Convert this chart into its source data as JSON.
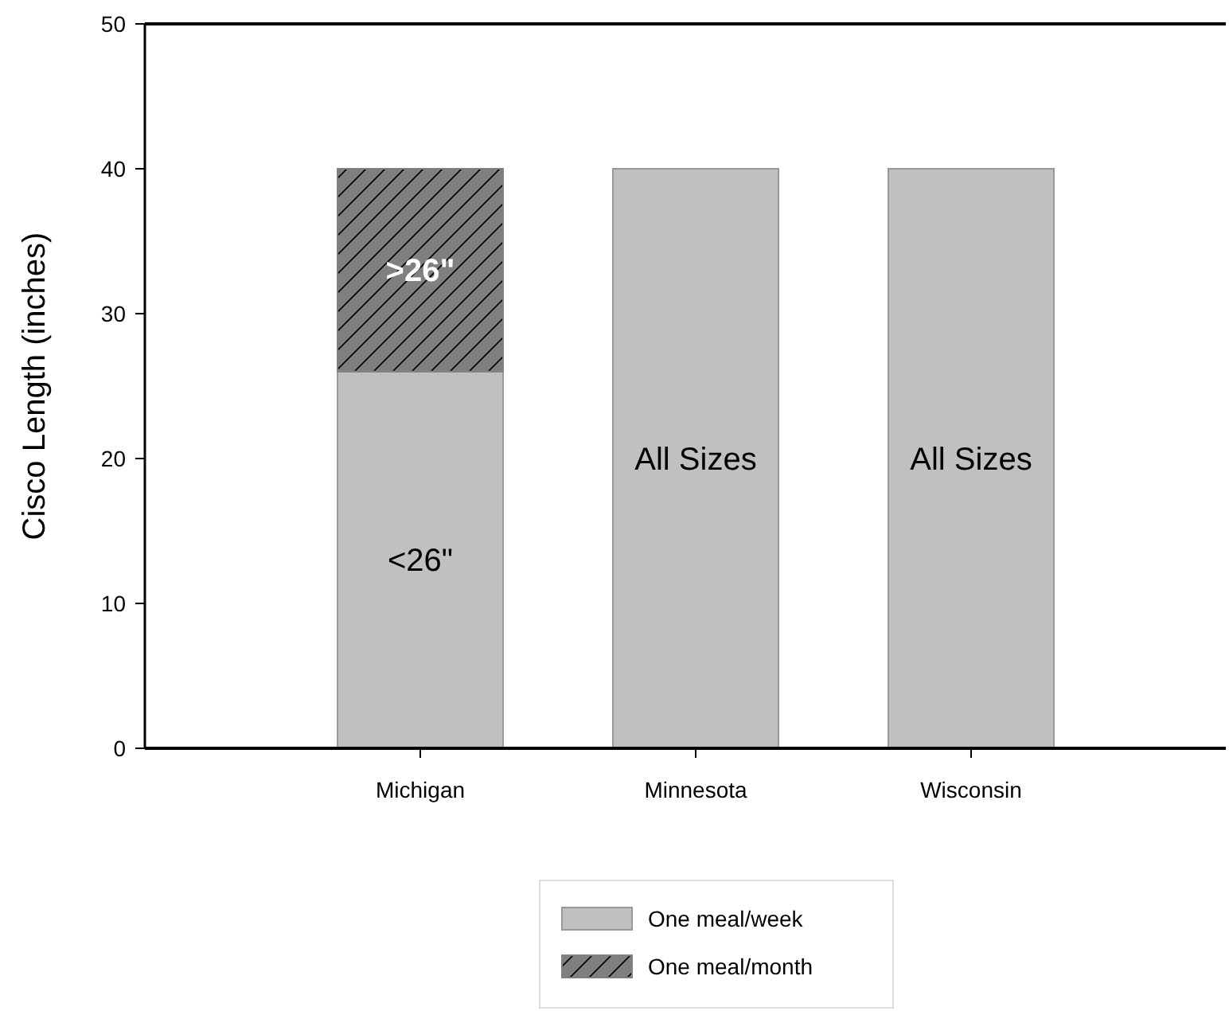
{
  "chart_data": {
    "type": "bar",
    "ylabel": "Cisco Length (inches)",
    "categories": [
      "Michigan",
      "Minnesota",
      "Wisconsin"
    ],
    "series": [
      {
        "name": "One meal/week",
        "color": "#c0c0c0",
        "values": [
          26,
          40,
          40
        ],
        "value_labels": [
          "<26\"",
          "All Sizes",
          "All Sizes"
        ]
      },
      {
        "name": "One meal/month",
        "color": "#808080",
        "values": [
          14,
          null,
          null
        ],
        "value_labels": [
          ">26\"",
          null,
          null
        ]
      }
    ],
    "stacked": true,
    "ylim": [
      0,
      50
    ],
    "yticks": [
      0,
      10,
      20,
      30,
      40,
      50
    ],
    "grid": false,
    "legend": "bottom"
  }
}
